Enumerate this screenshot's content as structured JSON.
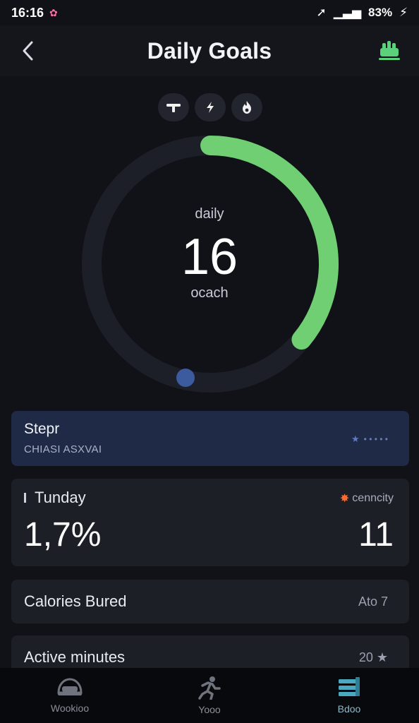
{
  "status_bar": {
    "time": "16:16",
    "battery": "83%"
  },
  "header": {
    "title": "Daily Goals"
  },
  "mode_pills": [
    {
      "icon": "dumbbell-icon"
    },
    {
      "icon": "bolt-icon"
    },
    {
      "icon": "flame-icon"
    }
  ],
  "ring": {
    "label_top": "daily",
    "value": "16",
    "label_bottom": "ocach",
    "progress": 0.36,
    "accent": "#6fcf72"
  },
  "steps_card": {
    "title": "Stepr",
    "subtitle": "CHIASI ASXVAI"
  },
  "tunday_card": {
    "label": "Tunday",
    "value": "1,7%",
    "right_label": "cenncity",
    "right_value": "11"
  },
  "calories_card": {
    "label": "Calories Bured",
    "value": "Ato 7"
  },
  "active_card": {
    "label": "Active minutes",
    "value": "20 ★"
  },
  "bottom_nav": [
    {
      "label": "Wookioo",
      "icon": "helmet-icon",
      "active": false
    },
    {
      "label": "Yooo",
      "icon": "running-icon",
      "active": false
    },
    {
      "label": "Bdoo",
      "icon": "list-icon",
      "active": true
    }
  ],
  "colors": {
    "background": "#111218",
    "accent_green": "#6fcf72",
    "steps_card": "#1e2a46",
    "nav_active": "#4aa9c0"
  }
}
